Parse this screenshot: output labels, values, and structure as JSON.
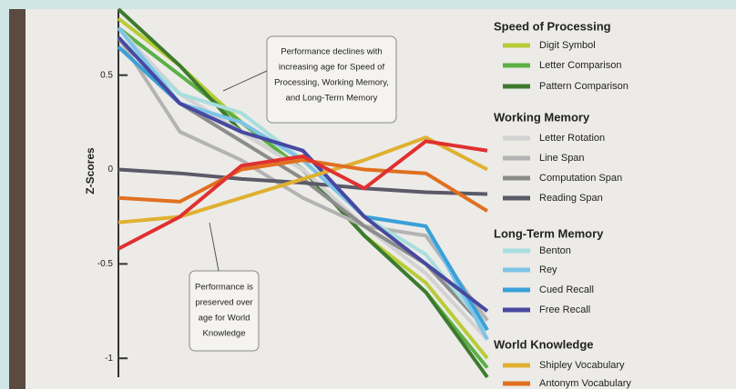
{
  "chart_data": {
    "type": "line",
    "ylabel": "Z-Scores",
    "categories": [
      null,
      null,
      null,
      null,
      null,
      null,
      null
    ],
    "ylim": [
      -1.1,
      0.85
    ],
    "yticks": [
      -1,
      -0.5,
      0,
      0.5
    ],
    "grid": false,
    "groups": [
      {
        "title": "Speed of Processing",
        "series": [
          {
            "name": "Digit Symbol",
            "color": "#b8cc38",
            "values": [
              0.8,
              0.55,
              0.25,
              0.0,
              -0.35,
              -0.6,
              -1.0
            ]
          },
          {
            "name": "Letter Comparison",
            "color": "#5cb045",
            "values": [
              0.75,
              0.5,
              0.25,
              0.0,
              -0.35,
              -0.65,
              -1.05
            ]
          },
          {
            "name": "Pattern Comparison",
            "color": "#3d7a2e",
            "values": [
              0.85,
              0.55,
              0.2,
              0.0,
              -0.35,
              -0.65,
              -1.1
            ]
          }
        ]
      },
      {
        "title": "Working Memory",
        "series": [
          {
            "name": "Letter Rotation",
            "color": "#d2d2d2",
            "values": [
              0.75,
              0.4,
              0.2,
              0.0,
              -0.3,
              -0.55,
              -0.9
            ]
          },
          {
            "name": "Line Span",
            "color": "#b3b3b3",
            "values": [
              0.7,
              0.2,
              0.05,
              -0.15,
              -0.3,
              -0.35,
              -0.8
            ]
          },
          {
            "name": "Computation Span",
            "color": "#8c8c8c",
            "values": [
              0.65,
              0.35,
              0.15,
              -0.05,
              -0.3,
              -0.5,
              -0.85
            ]
          },
          {
            "name": "Reading Span",
            "color": "#5a5a68",
            "values": [
              0.0,
              -0.02,
              -0.05,
              -0.07,
              -0.1,
              -0.12,
              -0.13
            ]
          }
        ]
      },
      {
        "title": "Long-Term Memory",
        "series": [
          {
            "name": "Benton",
            "color": "#a8dede",
            "values": [
              0.7,
              0.4,
              0.3,
              0.05,
              -0.25,
              -0.45,
              -0.85
            ]
          },
          {
            "name": "Rey",
            "color": "#7ec4e8",
            "values": [
              0.75,
              0.35,
              0.25,
              0.05,
              -0.25,
              -0.3,
              -0.9
            ]
          },
          {
            "name": "Cued Recall",
            "color": "#3aa0d8",
            "values": [
              0.65,
              0.35,
              0.2,
              0.1,
              -0.25,
              -0.3,
              -0.85
            ]
          },
          {
            "name": "Free Recall",
            "color": "#4848a0",
            "values": [
              0.7,
              0.35,
              0.2,
              0.1,
              -0.25,
              -0.5,
              -0.75
            ]
          }
        ]
      },
      {
        "title": "World Knowledge",
        "series": [
          {
            "name": "Shipley Vocabulary",
            "color": "#e0b030",
            "values": [
              -0.28,
              -0.25,
              -0.15,
              -0.05,
              0.05,
              0.17,
              0.0
            ]
          },
          {
            "name": "Antonym Vocabulary",
            "color": "#e07020",
            "values": [
              -0.15,
              -0.17,
              0.0,
              0.05,
              0.0,
              -0.02,
              -0.22
            ]
          },
          {
            "color": "#e03030",
            "values": [
              -0.42,
              -0.25,
              0.02,
              0.07,
              -0.1,
              0.15,
              0.1
            ]
          }
        ]
      }
    ],
    "annotations": [
      {
        "lines": [
          "Performance declines with",
          "increasing age for Speed of",
          "Processing, Working Memory,",
          "and Long-Term Memory"
        ]
      },
      {
        "lines": [
          "Performance is",
          "preserved over",
          "age for World",
          "Knowledge"
        ]
      }
    ]
  }
}
